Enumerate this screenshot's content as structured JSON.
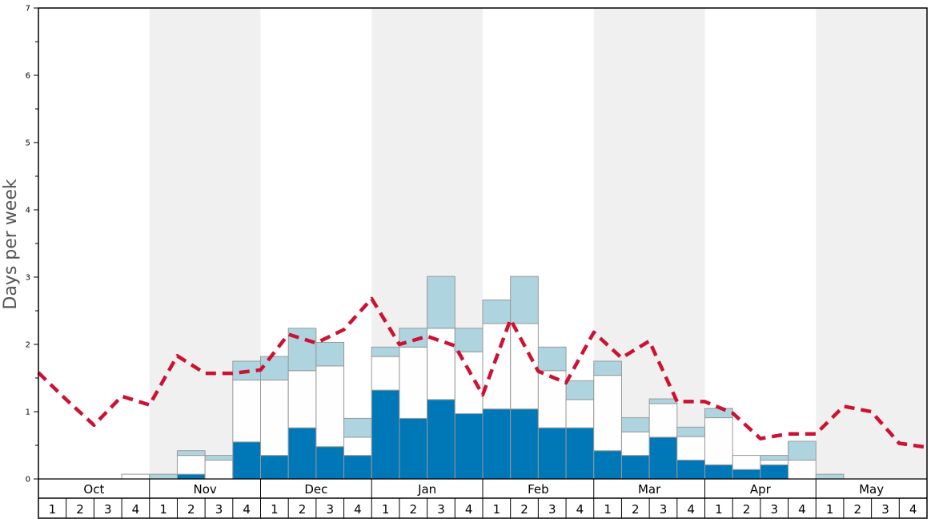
{
  "chart_data": {
    "type": "bar",
    "ylabel": "Days per week",
    "ylim": [
      0,
      7
    ],
    "y_tick_labels": [
      "0",
      "1",
      "2",
      "3",
      "4",
      "5",
      "6",
      "7"
    ],
    "months": [
      "Oct",
      "Nov",
      "Dec",
      "Jan",
      "Feb",
      "Mar",
      "Apr",
      "May"
    ],
    "weeks": [
      "1",
      "2",
      "3",
      "4"
    ],
    "stacked": true,
    "series": [
      {
        "key": "dark",
        "values": [
          0,
          0,
          0,
          0,
          0,
          0.07,
          0,
          0.55,
          0.35,
          0.76,
          0.48,
          0.35,
          1.32,
          0.9,
          1.18,
          0.97,
          1.04,
          1.04,
          0.76,
          0.76,
          0.42,
          0.35,
          0.62,
          0.28,
          0.21,
          0.14,
          0.21,
          0,
          0,
          0,
          0,
          0
        ]
      },
      {
        "key": "white",
        "values": [
          0,
          0,
          0,
          0.07,
          0,
          0.28,
          0.28,
          0.92,
          1.12,
          0.85,
          1.2,
          0.27,
          0.5,
          1.06,
          1.06,
          0.92,
          1.27,
          1.27,
          0.85,
          0.42,
          1.12,
          0.35,
          0.5,
          0.35,
          0.7,
          0.21,
          0.07,
          0.28,
          0,
          0,
          0,
          0
        ]
      },
      {
        "key": "light",
        "values": [
          0,
          0,
          0,
          0,
          0.07,
          0.07,
          0.07,
          0.28,
          0.35,
          0.63,
          0.35,
          0.28,
          0.14,
          0.28,
          0.77,
          0.35,
          0.35,
          0.7,
          0.35,
          0.28,
          0.21,
          0.21,
          0.07,
          0.14,
          0.14,
          0,
          0.07,
          0.28,
          0.07,
          0,
          0,
          0
        ]
      }
    ],
    "average_line": [
      1.58,
      1.18,
      0.8,
      1.23,
      1.1,
      1.83,
      1.57,
      1.57,
      1.62,
      2.15,
      2.02,
      2.22,
      2.68,
      2.0,
      2.12,
      1.98,
      1.25,
      2.37,
      1.6,
      1.43,
      2.18,
      1.8,
      2.05,
      1.15,
      1.15,
      0.98,
      0.6,
      0.67,
      0.67,
      1.08,
      1.0,
      0.53,
      0.47
    ],
    "colors": {
      "dark": "#0077b6",
      "white": "#fefefe",
      "light": "#aed4e0",
      "bar_stroke": "#999999",
      "line": "#cc1133",
      "shade": "#f0f0f0"
    },
    "shaded_months": [
      1,
      3,
      5,
      7
    ],
    "grid": false
  }
}
